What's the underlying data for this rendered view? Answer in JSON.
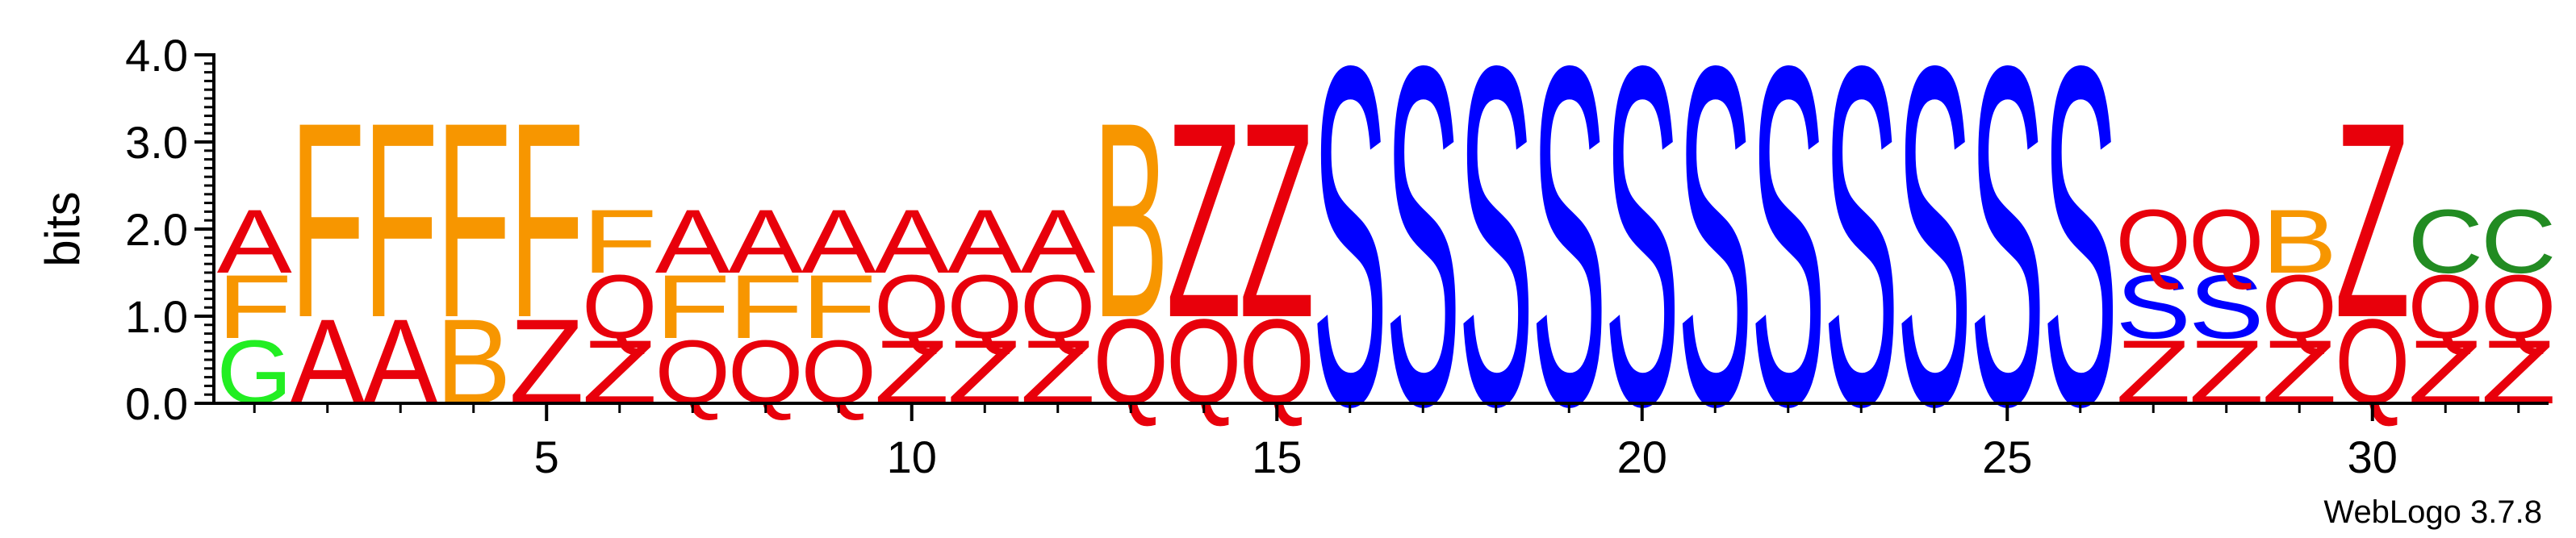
{
  "chart_data": {
    "type": "sequence_logo",
    "ylabel": "bits",
    "xlabel": "",
    "ylim": [
      0,
      4.0
    ],
    "y_ticks": [
      "0.0",
      "1.0",
      "2.0",
      "3.0",
      "4.0"
    ],
    "x_ticks": [
      "5",
      "10",
      "15",
      "20",
      "25",
      "30"
    ],
    "x_tick_positions": [
      5,
      10,
      15,
      20,
      25,
      30
    ],
    "footer": "WebLogo 3.7.8",
    "colors": {
      "A": "#e8000b",
      "Z": "#e8000b",
      "Q": "#e8000b",
      "F": "#f79600",
      "B": "#f79600",
      "S": "#0000ff",
      "G": "#22ee22",
      "C": "#228b22"
    },
    "positions": [
      {
        "pos": 1,
        "stack": [
          {
            "letter": "G",
            "bits": 0.75
          },
          {
            "letter": "F",
            "bits": 0.75
          },
          {
            "letter": "A",
            "bits": 0.75
          }
        ]
      },
      {
        "pos": 2,
        "stack": [
          {
            "letter": "A",
            "bits": 1.0
          },
          {
            "letter": "F",
            "bits": 2.3
          }
        ]
      },
      {
        "pos": 3,
        "stack": [
          {
            "letter": "A",
            "bits": 1.0
          },
          {
            "letter": "F",
            "bits": 2.3
          }
        ]
      },
      {
        "pos": 4,
        "stack": [
          {
            "letter": "B",
            "bits": 1.0
          },
          {
            "letter": "F",
            "bits": 2.3
          }
        ]
      },
      {
        "pos": 5,
        "stack": [
          {
            "letter": "Z",
            "bits": 1.0
          },
          {
            "letter": "F",
            "bits": 2.3
          }
        ]
      },
      {
        "pos": 6,
        "stack": [
          {
            "letter": "Z",
            "bits": 0.75
          },
          {
            "letter": "Q",
            "bits": 0.75
          },
          {
            "letter": "F",
            "bits": 0.75
          }
        ]
      },
      {
        "pos": 7,
        "stack": [
          {
            "letter": "Q",
            "bits": 0.75
          },
          {
            "letter": "F",
            "bits": 0.75
          },
          {
            "letter": "A",
            "bits": 0.75
          }
        ]
      },
      {
        "pos": 8,
        "stack": [
          {
            "letter": "Q",
            "bits": 0.75
          },
          {
            "letter": "F",
            "bits": 0.75
          },
          {
            "letter": "A",
            "bits": 0.75
          }
        ]
      },
      {
        "pos": 9,
        "stack": [
          {
            "letter": "Q",
            "bits": 0.75
          },
          {
            "letter": "F",
            "bits": 0.75
          },
          {
            "letter": "A",
            "bits": 0.75
          }
        ]
      },
      {
        "pos": 10,
        "stack": [
          {
            "letter": "Z",
            "bits": 0.75
          },
          {
            "letter": "Q",
            "bits": 0.75
          },
          {
            "letter": "A",
            "bits": 0.75
          }
        ]
      },
      {
        "pos": 11,
        "stack": [
          {
            "letter": "Z",
            "bits": 0.75
          },
          {
            "letter": "Q",
            "bits": 0.75
          },
          {
            "letter": "A",
            "bits": 0.75
          }
        ]
      },
      {
        "pos": 12,
        "stack": [
          {
            "letter": "Z",
            "bits": 0.75
          },
          {
            "letter": "Q",
            "bits": 0.75
          },
          {
            "letter": "A",
            "bits": 0.75
          }
        ]
      },
      {
        "pos": 13,
        "stack": [
          {
            "letter": "Q",
            "bits": 1.0
          },
          {
            "letter": "B",
            "bits": 2.3
          }
        ]
      },
      {
        "pos": 14,
        "stack": [
          {
            "letter": "Q",
            "bits": 1.0
          },
          {
            "letter": "Z",
            "bits": 2.3
          }
        ]
      },
      {
        "pos": 15,
        "stack": [
          {
            "letter": "Q",
            "bits": 1.0
          },
          {
            "letter": "Z",
            "bits": 2.3
          }
        ]
      },
      {
        "pos": 16,
        "stack": [
          {
            "letter": "S",
            "bits": 4.0
          }
        ]
      },
      {
        "pos": 17,
        "stack": [
          {
            "letter": "S",
            "bits": 4.0
          }
        ]
      },
      {
        "pos": 18,
        "stack": [
          {
            "letter": "S",
            "bits": 4.0
          }
        ]
      },
      {
        "pos": 19,
        "stack": [
          {
            "letter": "S",
            "bits": 4.0
          }
        ]
      },
      {
        "pos": 20,
        "stack": [
          {
            "letter": "S",
            "bits": 4.0
          }
        ]
      },
      {
        "pos": 21,
        "stack": [
          {
            "letter": "S",
            "bits": 4.0
          }
        ]
      },
      {
        "pos": 22,
        "stack": [
          {
            "letter": "S",
            "bits": 4.0
          }
        ]
      },
      {
        "pos": 23,
        "stack": [
          {
            "letter": "S",
            "bits": 4.0
          }
        ]
      },
      {
        "pos": 24,
        "stack": [
          {
            "letter": "S",
            "bits": 4.0
          }
        ]
      },
      {
        "pos": 25,
        "stack": [
          {
            "letter": "S",
            "bits": 4.0
          }
        ]
      },
      {
        "pos": 26,
        "stack": [
          {
            "letter": "S",
            "bits": 4.0
          }
        ]
      },
      {
        "pos": 27,
        "stack": [
          {
            "letter": "Z",
            "bits": 0.75
          },
          {
            "letter": "S",
            "bits": 0.75
          },
          {
            "letter": "Q",
            "bits": 0.75
          }
        ]
      },
      {
        "pos": 28,
        "stack": [
          {
            "letter": "Z",
            "bits": 0.75
          },
          {
            "letter": "S",
            "bits": 0.75
          },
          {
            "letter": "Q",
            "bits": 0.75
          }
        ]
      },
      {
        "pos": 29,
        "stack": [
          {
            "letter": "Z",
            "bits": 0.75
          },
          {
            "letter": "Q",
            "bits": 0.75
          },
          {
            "letter": "B",
            "bits": 0.75
          }
        ]
      },
      {
        "pos": 30,
        "stack": [
          {
            "letter": "Q",
            "bits": 1.0
          },
          {
            "letter": "Z",
            "bits": 2.3
          }
        ]
      },
      {
        "pos": 31,
        "stack": [
          {
            "letter": "Z",
            "bits": 0.75
          },
          {
            "letter": "Q",
            "bits": 0.75
          },
          {
            "letter": "C",
            "bits": 0.75
          }
        ]
      },
      {
        "pos": 32,
        "stack": [
          {
            "letter": "Z",
            "bits": 0.75
          },
          {
            "letter": "Q",
            "bits": 0.75
          },
          {
            "letter": "C",
            "bits": 0.75
          }
        ]
      }
    ]
  }
}
